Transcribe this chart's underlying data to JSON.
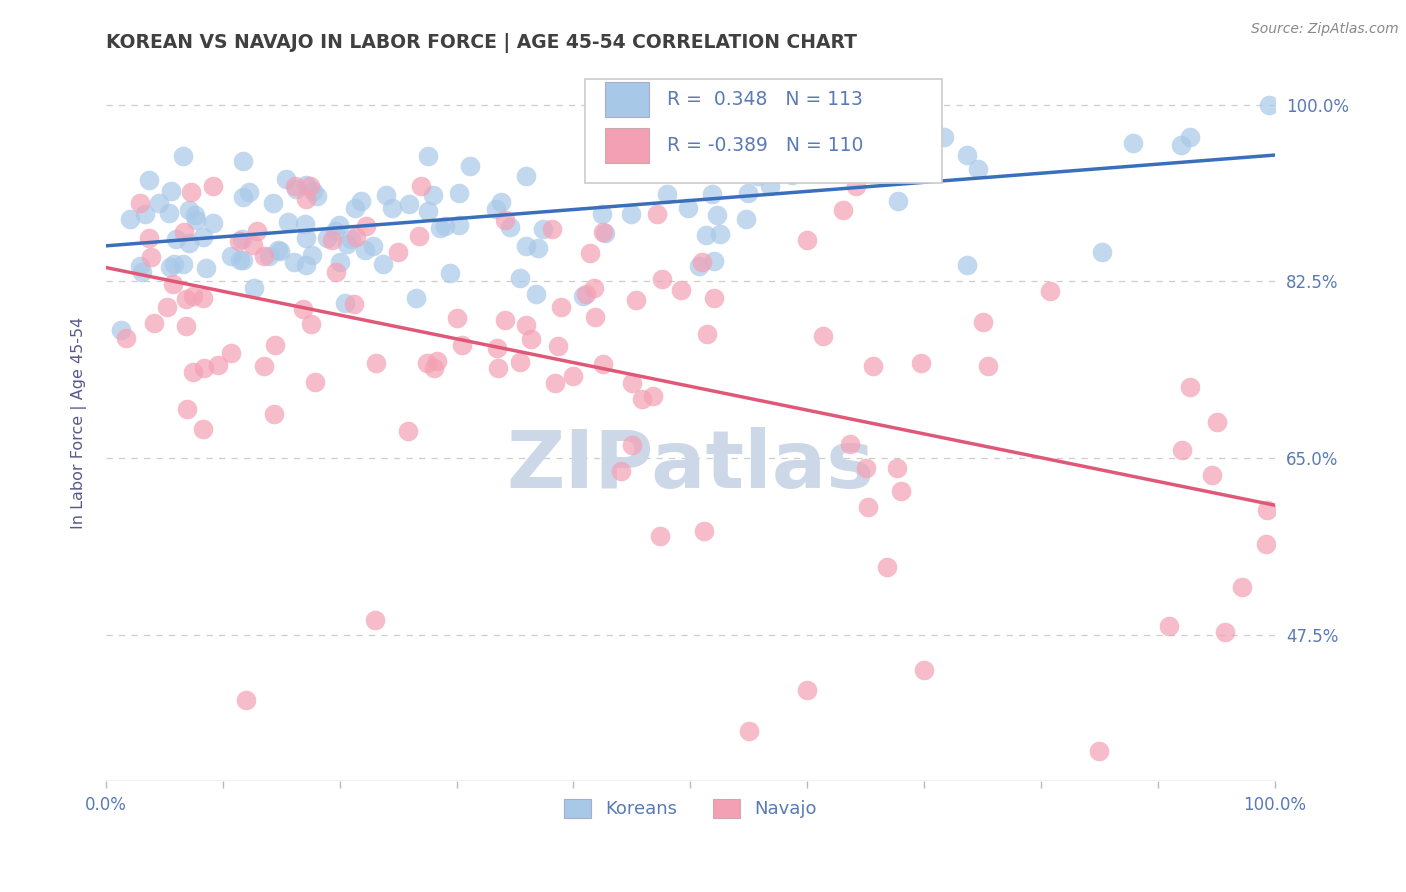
{
  "title": "KOREAN VS NAVAJO IN LABOR FORCE | AGE 45-54 CORRELATION CHART",
  "source_text": "Source: ZipAtlas.com",
  "ylabel": "In Labor Force | Age 45-54",
  "xlim": [
    0.0,
    1.0
  ],
  "ylim": [
    0.33,
    1.04
  ],
  "yticks": [
    0.475,
    0.65,
    0.825,
    1.0
  ],
  "ytick_labels": [
    "47.5%",
    "65.0%",
    "82.5%",
    "100.0%"
  ],
  "xtick_labels": [
    "0.0%",
    "100.0%"
  ],
  "xticks": [
    0.0,
    1.0
  ],
  "korean_R": 0.348,
  "korean_N": 113,
  "navajo_R": -0.389,
  "navajo_N": 110,
  "korean_color": "#a8c8e8",
  "navajo_color": "#f4a0b4",
  "korean_line_color": "#3a6fbc",
  "navajo_line_color": "#e05878",
  "legend_label_korean": "Koreans",
  "legend_label_navajo": "Navajo",
  "watermark_color": "#ccd8e8",
  "bg_color": "#ffffff",
  "grid_color": "#c8c8c8",
  "title_color": "#404040",
  "axis_label_color": "#5a5a8a",
  "tick_label_color": "#5a7ab5",
  "title_fontsize": 13.5,
  "korean_seed": 42,
  "navajo_seed": 99
}
